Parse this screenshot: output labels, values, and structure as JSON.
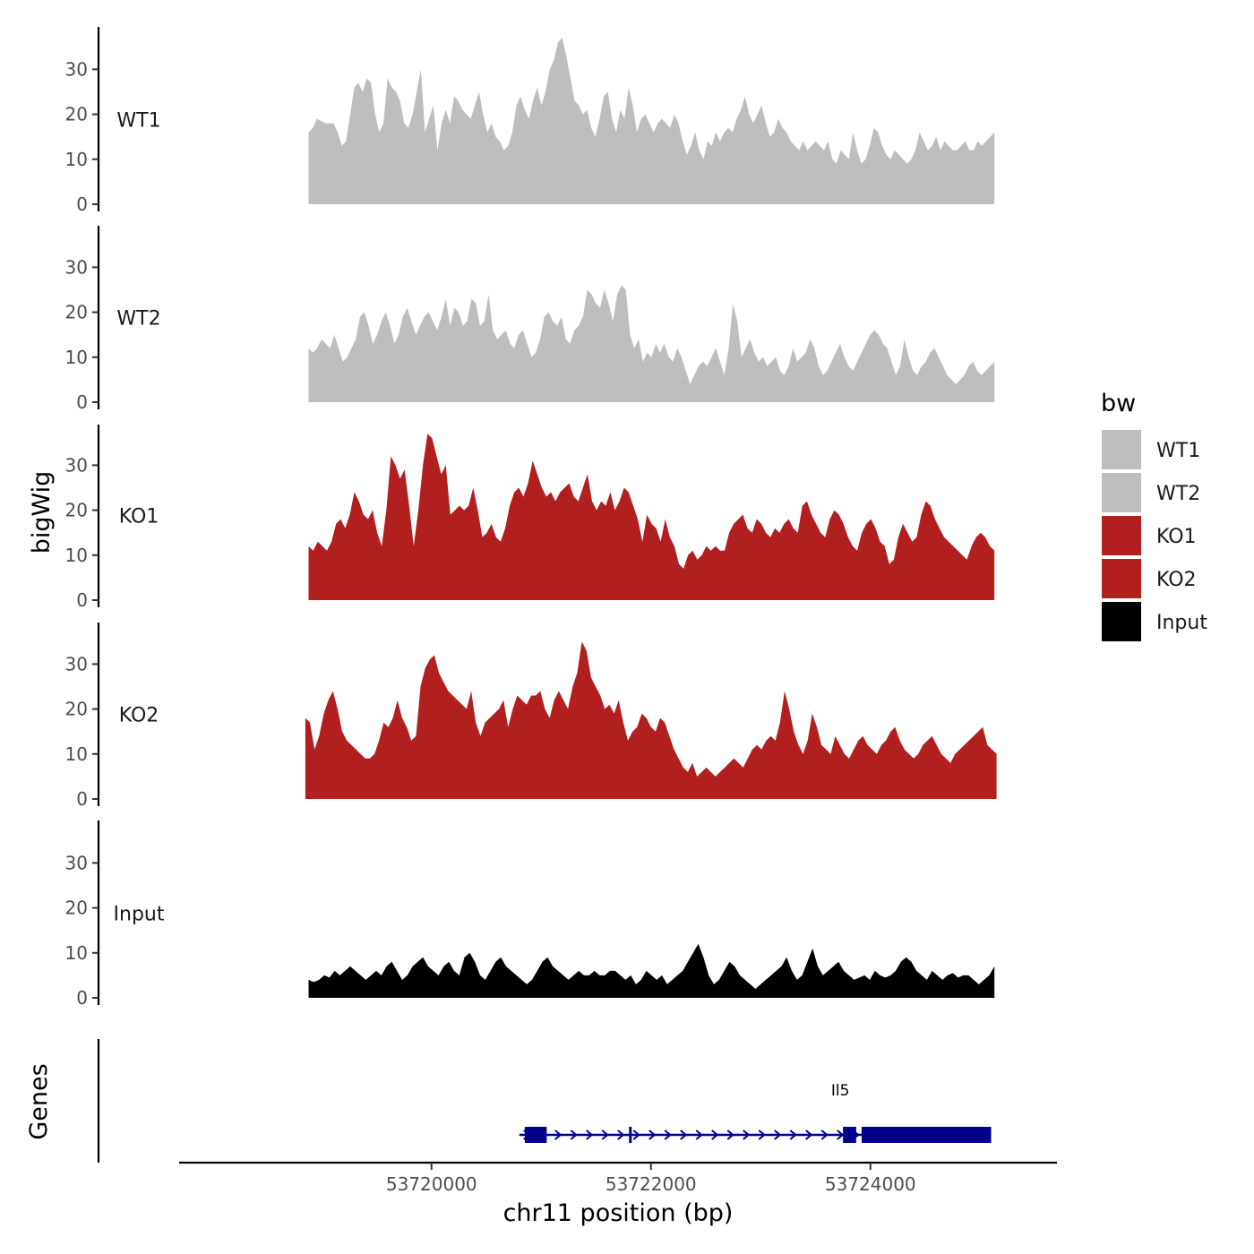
{
  "chart_data": {
    "type": "area",
    "title": "",
    "ylabel": "bigWig",
    "xlabel": "chr11 position (bp)",
    "xlim": [
      53717700,
      53725700
    ],
    "ylim": [
      0,
      39
    ],
    "yticks": [
      0,
      10,
      20,
      30
    ],
    "xticks": [
      53720000,
      53722000,
      53724000
    ],
    "grid": false,
    "legend": {
      "title": "bw",
      "placement": "right",
      "entries": [
        {
          "label": "WT1",
          "color": "#BEBEBE"
        },
        {
          "label": "WT2",
          "color": "#BEBEBE"
        },
        {
          "label": "KO1",
          "color": "#B21F1F"
        },
        {
          "label": "KO2",
          "color": "#B21F1F"
        },
        {
          "label": "Input",
          "color": "#000000"
        }
      ]
    },
    "series": [
      {
        "name": "WT1",
        "color": "#BEBEBE",
        "x_start": 53718880,
        "x_end": 53725130,
        "values": [
          16,
          17,
          19,
          18.5,
          18,
          18,
          18,
          16,
          13,
          14,
          20,
          26,
          27,
          25,
          28,
          27,
          20,
          16,
          18,
          28,
          26,
          25,
          23,
          18,
          17,
          20,
          25,
          30,
          16,
          19,
          22,
          12,
          18,
          21,
          18,
          24,
          23,
          21,
          20,
          19,
          22,
          25,
          20,
          16,
          18,
          15,
          14,
          12,
          13,
          16,
          22,
          24,
          21,
          19,
          23,
          26,
          22,
          25,
          30,
          32,
          36,
          37,
          33,
          28,
          23,
          22,
          20,
          21,
          17,
          15,
          19,
          24,
          25,
          19,
          16,
          21,
          19,
          26,
          22,
          16,
          19,
          20,
          18,
          16,
          18,
          19,
          18,
          17,
          20,
          18,
          14,
          11,
          13,
          16,
          12,
          10,
          14,
          13,
          16,
          14,
          16,
          17,
          16,
          19,
          21,
          24,
          20,
          18,
          20,
          22,
          18,
          15,
          16,
          19,
          17,
          16,
          14,
          13,
          12,
          14,
          12,
          13,
          14,
          13,
          12,
          14,
          10,
          9,
          12,
          11,
          10,
          16,
          12,
          9,
          10,
          13,
          17,
          16,
          13,
          11,
          10,
          12,
          11,
          10,
          9,
          10,
          12,
          16,
          14,
          12,
          13,
          15,
          12,
          14,
          13,
          12,
          12,
          13,
          14,
          12,
          12,
          14,
          13,
          14,
          15,
          16
        ]
      },
      {
        "name": "WT2",
        "color": "#BEBEBE",
        "x_start": 53718880,
        "x_end": 53725130,
        "values": [
          12,
          11,
          12,
          14,
          13,
          12,
          15,
          12,
          9,
          10,
          12,
          14,
          19,
          20,
          17,
          13,
          15,
          18,
          20,
          17,
          13,
          15,
          19,
          21,
          18,
          15,
          17,
          19,
          20,
          18,
          16,
          19,
          23,
          17,
          21,
          20,
          17,
          18,
          23,
          22,
          17,
          18,
          24,
          16,
          14,
          15,
          16,
          13,
          12,
          15,
          16,
          13,
          10,
          11,
          14,
          19,
          20,
          18,
          17,
          19,
          14,
          13,
          16,
          17,
          19,
          25,
          24,
          22,
          21,
          25,
          22,
          18,
          24,
          26,
          25,
          15,
          12,
          14,
          9,
          11,
          10,
          13,
          11,
          13,
          10,
          9,
          12,
          10,
          7,
          4,
          6,
          8,
          9,
          8,
          10,
          12,
          9,
          6,
          12,
          22,
          18,
          10,
          12,
          14,
          11,
          9,
          10,
          8,
          9,
          10,
          7,
          6,
          8,
          12,
          9,
          10,
          11,
          14,
          12,
          8,
          6,
          7,
          9,
          11,
          13,
          10,
          8,
          7,
          9,
          11,
          13,
          15,
          16,
          15,
          13,
          12,
          9,
          6,
          8,
          14,
          10,
          7,
          6,
          8,
          9,
          11,
          12,
          10,
          8,
          6,
          5,
          4,
          5,
          6,
          8,
          9,
          7,
          6,
          7,
          8,
          9
        ]
      },
      {
        "name": "KO1",
        "color": "#B21F1F",
        "x_start": 53718880,
        "x_end": 53725130,
        "values": [
          12,
          11,
          13,
          12,
          11,
          13,
          17,
          18,
          16,
          19,
          24,
          22,
          19,
          18,
          20,
          15,
          12,
          20,
          32,
          30,
          27,
          29,
          21,
          12,
          20,
          30,
          37,
          36,
          32,
          28,
          30,
          19,
          20,
          21,
          20,
          21,
          25,
          20,
          14,
          15,
          17,
          14,
          13,
          16,
          21,
          24,
          25,
          23,
          26,
          31,
          28,
          25,
          23,
          24,
          22,
          24,
          25,
          26,
          23,
          22,
          25,
          28,
          22,
          20,
          22,
          21,
          24,
          20,
          22,
          25,
          24,
          21,
          18,
          13,
          19,
          17,
          16,
          13,
          18,
          14,
          12,
          8,
          7,
          10,
          11,
          9,
          10,
          12,
          11,
          12,
          11,
          11,
          15,
          17,
          18,
          19,
          16,
          15,
          18,
          17,
          15,
          14,
          16,
          15,
          17,
          18,
          16,
          15,
          21,
          22,
          19,
          17,
          15,
          14,
          18,
          20,
          19,
          17,
          14,
          12,
          11,
          15,
          17,
          18,
          16,
          13,
          12,
          8,
          9,
          14,
          17,
          15,
          13,
          14,
          19,
          22,
          21,
          18,
          16,
          14,
          13,
          12,
          11,
          10,
          9,
          12,
          14,
          15,
          14,
          12,
          11
        ]
      },
      {
        "name": "KO2",
        "color": "#B21F1F",
        "x_start": 53718850,
        "x_end": 53725150,
        "values": [
          18,
          17,
          11,
          14,
          19,
          22,
          24,
          20,
          15,
          13,
          12,
          11,
          10,
          9,
          9,
          10,
          13,
          17,
          16,
          18,
          22,
          18,
          16,
          13,
          14,
          25,
          29,
          31,
          32,
          28,
          26,
          24,
          23,
          22,
          21,
          20,
          24,
          17,
          14,
          17,
          18,
          19,
          20,
          22,
          16,
          20,
          23,
          22,
          21,
          23,
          23,
          24,
          20,
          18,
          22,
          24,
          22,
          20,
          25,
          28,
          35,
          33,
          27,
          25,
          23,
          20,
          21,
          19,
          22,
          17,
          13,
          15,
          16,
          19,
          18,
          16,
          15,
          18,
          17,
          14,
          11,
          9,
          7,
          6,
          8,
          5,
          6,
          7,
          6,
          5,
          6,
          7,
          8,
          9,
          8,
          7,
          9,
          11,
          12,
          11,
          13,
          14,
          13,
          17,
          24,
          20,
          15,
          12,
          10,
          13,
          19,
          16,
          12,
          11,
          10,
          14,
          12,
          10,
          9,
          11,
          13,
          14,
          12,
          11,
          10,
          12,
          13,
          15,
          16,
          13,
          11,
          10,
          9,
          10,
          12,
          13,
          14,
          12,
          10,
          9,
          8,
          10,
          11,
          12,
          13,
          14,
          15,
          16,
          12,
          11,
          10
        ]
      },
      {
        "name": "Input",
        "color": "#000000",
        "x_start": 53718880,
        "x_end": 53725130,
        "values": [
          4,
          3.5,
          4,
          5,
          4.5,
          6,
          5,
          6,
          7,
          6,
          5,
          4,
          5,
          6,
          5,
          7,
          8,
          6,
          4,
          5,
          7,
          8,
          9,
          7,
          6,
          5,
          7,
          8,
          6,
          5,
          9,
          10,
          8,
          5,
          4,
          6,
          8,
          9,
          7,
          6,
          5,
          4,
          3,
          4,
          6,
          8,
          9,
          7,
          6,
          5,
          4,
          5,
          6,
          5,
          5,
          6,
          5,
          5,
          6,
          6,
          5,
          4,
          5,
          3,
          4,
          6,
          5,
          4,
          5,
          3,
          4,
          5,
          6,
          8,
          10,
          12,
          9,
          5,
          3,
          4,
          6,
          8,
          7,
          5,
          4,
          3,
          2,
          3,
          4,
          5,
          6,
          7,
          9,
          6,
          4,
          5,
          8,
          11,
          7,
          5,
          6,
          7,
          8,
          6,
          5,
          4,
          4.5,
          5,
          4,
          6,
          5,
          4.5,
          5,
          6,
          8,
          9,
          8,
          6,
          5,
          4,
          6,
          5,
          4,
          5,
          5.5,
          4.5,
          5,
          5,
          4,
          3,
          4,
          5,
          7
        ]
      }
    ],
    "gene_track": {
      "label": "Genes",
      "gene_name": "Il5",
      "strand": "+",
      "color": "#00008B",
      "start": 53720800,
      "end": 53725100,
      "exons": [
        [
          53720850,
          53721050
        ],
        [
          53721800,
          53721820
        ],
        [
          53723750,
          53723870
        ],
        [
          53723920,
          53725100
        ]
      ]
    }
  }
}
